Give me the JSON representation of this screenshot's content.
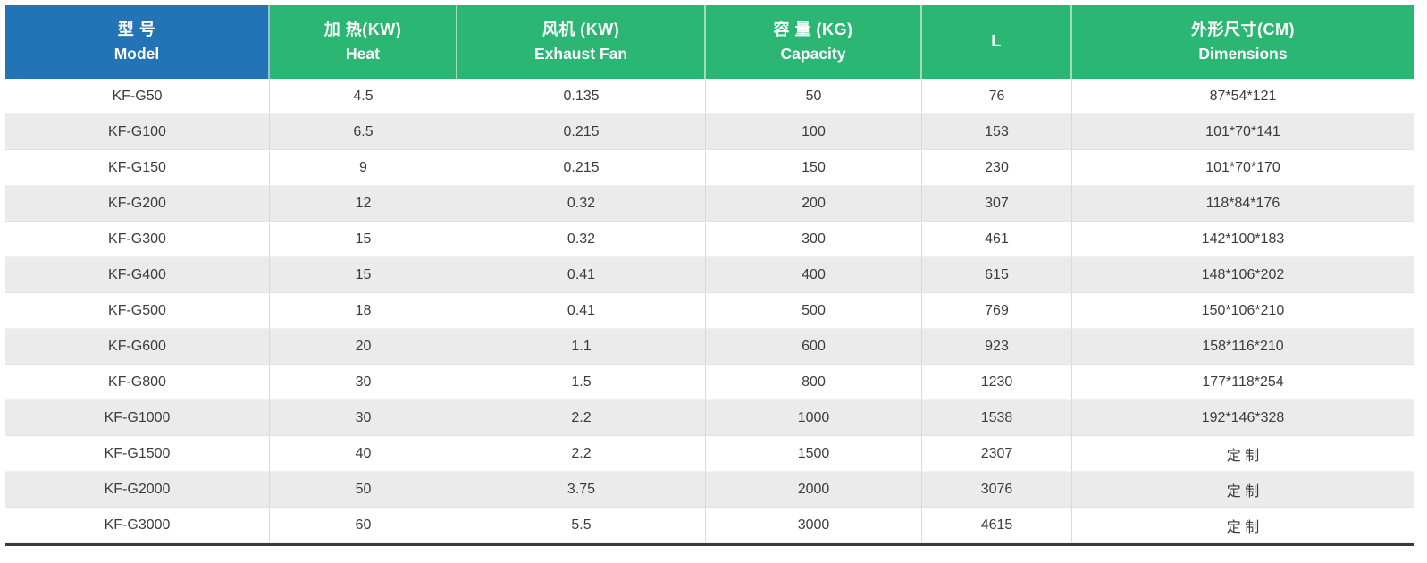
{
  "chart_data": {
    "type": "table",
    "title": "",
    "columns": [
      {
        "zh": "型 号",
        "en": "Model"
      },
      {
        "zh": "加 热(KW)",
        "en": "Heat"
      },
      {
        "zh": "风机 (KW)",
        "en": "Exhaust Fan"
      },
      {
        "zh": "容 量 (KG)",
        "en": "Capacity"
      },
      {
        "zh": "L",
        "en": ""
      },
      {
        "zh": "外形尺寸(CM)",
        "en": "Dimensions"
      }
    ],
    "rows": [
      [
        "KF-G50",
        "4.5",
        "0.135",
        "50",
        "76",
        "87*54*121"
      ],
      [
        "KF-G100",
        "6.5",
        "0.215",
        "100",
        "153",
        "101*70*141"
      ],
      [
        "KF-G150",
        "9",
        "0.215",
        "150",
        "230",
        "101*70*170"
      ],
      [
        "KF-G200",
        "12",
        "0.32",
        "200",
        "307",
        "118*84*176"
      ],
      [
        "KF-G300",
        "15",
        "0.32",
        "300",
        "461",
        "142*100*183"
      ],
      [
        "KF-G400",
        "15",
        "0.41",
        "400",
        "615",
        "148*106*202"
      ],
      [
        "KF-G500",
        "18",
        "0.41",
        "500",
        "769",
        "150*106*210"
      ],
      [
        "KF-G600",
        "20",
        "1.1",
        "600",
        "923",
        "158*116*210"
      ],
      [
        "KF-G800",
        "30",
        "1.5",
        "800",
        "1230",
        "177*118*254"
      ],
      [
        "KF-G1000",
        "30",
        "2.2",
        "1000",
        "1538",
        "192*146*328"
      ],
      [
        "KF-G1500",
        "40",
        "2.2",
        "1500",
        "2307",
        "定 制"
      ],
      [
        "KF-G2000",
        "50",
        "3.75",
        "2000",
        "3076",
        "定 制"
      ],
      [
        "KF-G3000",
        "60",
        "5.5",
        "3000",
        "4615",
        "定 制"
      ]
    ]
  },
  "colors": {
    "model_header_bg": "#2374b6",
    "header_bg": "#2cb674",
    "header_text": "#ffffff",
    "row_bg": "#ffffff",
    "row_alt_bg": "#ebebeb",
    "text": "#3c3c3c",
    "bottom_border": "#3a3a3a"
  }
}
